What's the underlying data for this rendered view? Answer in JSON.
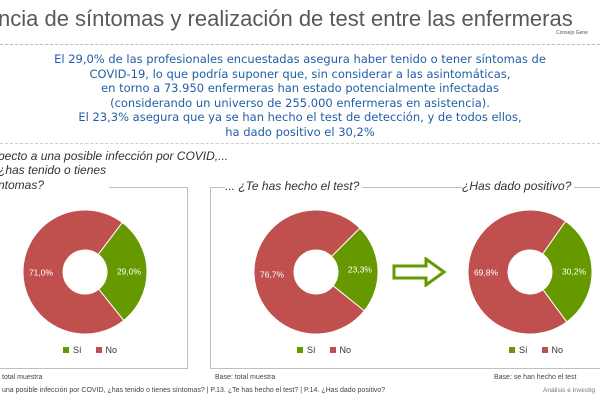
{
  "header": {
    "title": "ncia de síntomas y realización de test entre las enfermeras",
    "logo_text": "Consejo Gene"
  },
  "message": {
    "p1": [
      "El 29,0% de las profesionales encuestadas asegura haber tenido o tener síntomas de",
      "COVID-19, lo que podría suponer que, sin considerar a las asintomáticas,",
      "en torno a 73.950 enfermeras han estado potencialmente infectadas",
      "(considerando un universo de 255.000 enfermeras en asistencia)."
    ],
    "p2": [
      "El 23,3% asegura que ya se han hecho el test de detección, y de todos ellos,",
      "ha dado positivo el 30,2%"
    ]
  },
  "intro": "pecto a una posible infección por COVID,...",
  "colors": {
    "si": "#669900",
    "no": "#c0504d"
  },
  "chart_data": [
    {
      "type": "pie",
      "title": "¿has tenido o tienes síntomas?",
      "title_lines": [
        "¿has tenido o tienes",
        "ntomas?"
      ],
      "categories": [
        "Sí",
        "No"
      ],
      "values": [
        29.0,
        71.0
      ],
      "labels": [
        "29,0%",
        "71,0%"
      ],
      "base": "total muestra"
    },
    {
      "type": "pie",
      "title": "... ¿Te has hecho el test?",
      "categories": [
        "Sí",
        "No"
      ],
      "values": [
        23.3,
        76.7
      ],
      "labels": [
        "23,3%",
        "76,7%"
      ],
      "base": "Base: total muestra"
    },
    {
      "type": "pie",
      "title": "¿Has dado positivo?",
      "categories": [
        "Sí",
        "No"
      ],
      "values": [
        30.2,
        69.8
      ],
      "labels": [
        "30,2%",
        "69,8%"
      ],
      "base": "Base: se han hecho el test"
    }
  ],
  "footer": {
    "text": "una posible infección por COVID, ¿has tenido o tienes síntomas? | P.13. ¿Te has hecho el test? | P.14. ¿Has dado positivo?",
    "brand": "Análisis e Investig"
  }
}
